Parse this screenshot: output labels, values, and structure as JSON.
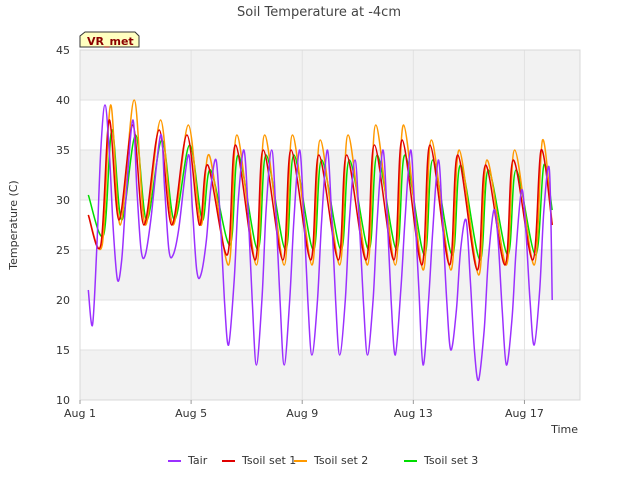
{
  "chart_data": {
    "type": "line",
    "title": "Soil Temperature at -4cm",
    "xlabel": "Time",
    "ylabel": "Temperature (C)",
    "badge": "VR_met",
    "ylim": [
      10,
      45
    ],
    "yticks": [
      10,
      15,
      20,
      25,
      30,
      35,
      40,
      45
    ],
    "xlim": [
      1,
      19.0
    ],
    "xticks": [
      {
        "value": 1,
        "label": "Aug 1"
      },
      {
        "value": 5,
        "label": "Aug 5"
      },
      {
        "value": 9,
        "label": "Aug 9"
      },
      {
        "value": 13,
        "label": "Aug 13"
      },
      {
        "value": 17,
        "label": "Aug 17"
      }
    ],
    "grid": true,
    "legend_position": "bottom",
    "series": [
      {
        "name": "Tair",
        "color": "#9b30ff",
        "x": [
          1.3,
          1.45,
          1.6,
          1.75,
          1.9,
          2.05,
          2.2,
          2.35,
          2.5,
          2.65,
          2.9,
          3.05,
          3.2,
          3.35,
          3.55,
          3.9,
          4.05,
          4.2,
          4.35,
          4.55,
          4.9,
          5.05,
          5.2,
          5.35,
          5.55,
          5.7,
          5.9,
          6.05,
          6.2,
          6.35,
          6.55,
          6.7,
          6.9,
          7.05,
          7.2,
          7.35,
          7.55,
          7.7,
          7.9,
          8.05,
          8.2,
          8.35,
          8.55,
          8.7,
          8.9,
          9.05,
          9.2,
          9.35,
          9.55,
          9.7,
          9.9,
          10.05,
          10.2,
          10.35,
          10.55,
          10.7,
          10.9,
          11.05,
          11.2,
          11.35,
          11.55,
          11.7,
          11.9,
          12.05,
          12.2,
          12.35,
          12.55,
          12.7,
          12.9,
          13.05,
          13.2,
          13.35,
          13.55,
          13.7,
          13.9,
          14.05,
          14.2,
          14.35,
          14.55,
          14.7,
          14.9,
          15.05,
          15.2,
          15.35,
          15.55,
          15.7,
          15.9,
          16.05,
          16.2,
          16.35,
          16.55,
          16.7,
          16.9,
          17.05,
          17.2,
          17.35,
          17.55,
          17.7,
          17.9,
          18.0
        ],
        "values": [
          21,
          17.5,
          25,
          35,
          39.5,
          35,
          27,
          22,
          24,
          30,
          38,
          31,
          25,
          24.5,
          28,
          36.5,
          31,
          25,
          24.5,
          27,
          34.5,
          29,
          23,
          22.5,
          26,
          31,
          34,
          28,
          20,
          15.5,
          22,
          30,
          35,
          29,
          20,
          13.5,
          20,
          29,
          35,
          29,
          20,
          13.5,
          20,
          28,
          35,
          29,
          20,
          14.5,
          20,
          28,
          35,
          29,
          20,
          14.5,
          20,
          28,
          34,
          28,
          20,
          14.5,
          20,
          28,
          35,
          29,
          20,
          14.5,
          21,
          28,
          35,
          29,
          21,
          13.5,
          20,
          27,
          34,
          28,
          20,
          15,
          19,
          25,
          28,
          22,
          15,
          12,
          17,
          24,
          29,
          26,
          19,
          13.5,
          18,
          25,
          31,
          27,
          20,
          15.5,
          21,
          29,
          33,
          20
        ]
      },
      {
        "name": "Tsoil set 1",
        "color": "#e00000",
        "x": [
          1.3,
          1.75,
          2.05,
          2.4,
          2.9,
          3.3,
          3.85,
          4.3,
          4.85,
          5.3,
          5.6,
          6.3,
          6.6,
          7.3,
          7.6,
          8.3,
          8.6,
          9.3,
          9.6,
          10.3,
          10.6,
          11.3,
          11.6,
          12.3,
          12.6,
          13.3,
          13.6,
          14.3,
          14.6,
          15.3,
          15.6,
          16.3,
          16.6,
          17.3,
          17.6,
          18.0
        ],
        "values": [
          28.5,
          25.5,
          38,
          28,
          37.5,
          27.5,
          37,
          27.5,
          36.5,
          27.5,
          33.5,
          24.5,
          35.5,
          24,
          35,
          24,
          35,
          24,
          34.5,
          24,
          34.5,
          24,
          35.5,
          24,
          36,
          23.5,
          35.5,
          23.5,
          34.5,
          23,
          33.5,
          23.5,
          34,
          24,
          35,
          27.5
        ]
      },
      {
        "name": "Tsoil set 2",
        "color": "#ff9900",
        "x": [
          1.3,
          1.8,
          2.1,
          2.45,
          2.95,
          3.35,
          3.9,
          4.35,
          4.9,
          5.35,
          5.65,
          6.35,
          6.65,
          7.35,
          7.65,
          8.35,
          8.65,
          9.35,
          9.65,
          10.35,
          10.65,
          11.35,
          11.65,
          12.35,
          12.65,
          13.35,
          13.65,
          14.35,
          14.65,
          15.35,
          15.65,
          16.35,
          16.65,
          17.35,
          17.65,
          18.0
        ],
        "values": [
          28.5,
          25.5,
          39.5,
          27.5,
          40,
          27.5,
          38,
          27.5,
          37.5,
          27.5,
          34.5,
          23.5,
          36.5,
          23.5,
          36.5,
          23.5,
          36.5,
          23.5,
          36,
          23.5,
          36.5,
          23.5,
          37.5,
          23.5,
          37.5,
          23,
          36,
          23,
          35,
          22.5,
          34,
          23.5,
          35,
          23.5,
          36,
          27.5
        ]
      },
      {
        "name": "Tsoil set 3",
        "color": "#00dd00",
        "x": [
          1.3,
          1.85,
          2.15,
          2.5,
          3.0,
          3.4,
          3.95,
          4.4,
          4.95,
          5.4,
          5.7,
          6.4,
          6.7,
          7.4,
          7.7,
          8.4,
          8.7,
          9.4,
          9.7,
          10.4,
          10.7,
          11.4,
          11.7,
          12.4,
          12.7,
          13.4,
          13.7,
          14.4,
          14.7,
          15.4,
          15.7,
          16.4,
          16.7,
          17.4,
          17.7,
          18.0
        ],
        "values": [
          30.5,
          26.5,
          37,
          28,
          36.5,
          28,
          36,
          28,
          35.5,
          28,
          33,
          25.5,
          34.5,
          25,
          34.5,
          25,
          34.5,
          25,
          34,
          25,
          34,
          25,
          34.5,
          25,
          34.5,
          24.5,
          34,
          24.5,
          33.5,
          24,
          33,
          24.5,
          33,
          24.5,
          33.5,
          29
        ]
      }
    ]
  }
}
